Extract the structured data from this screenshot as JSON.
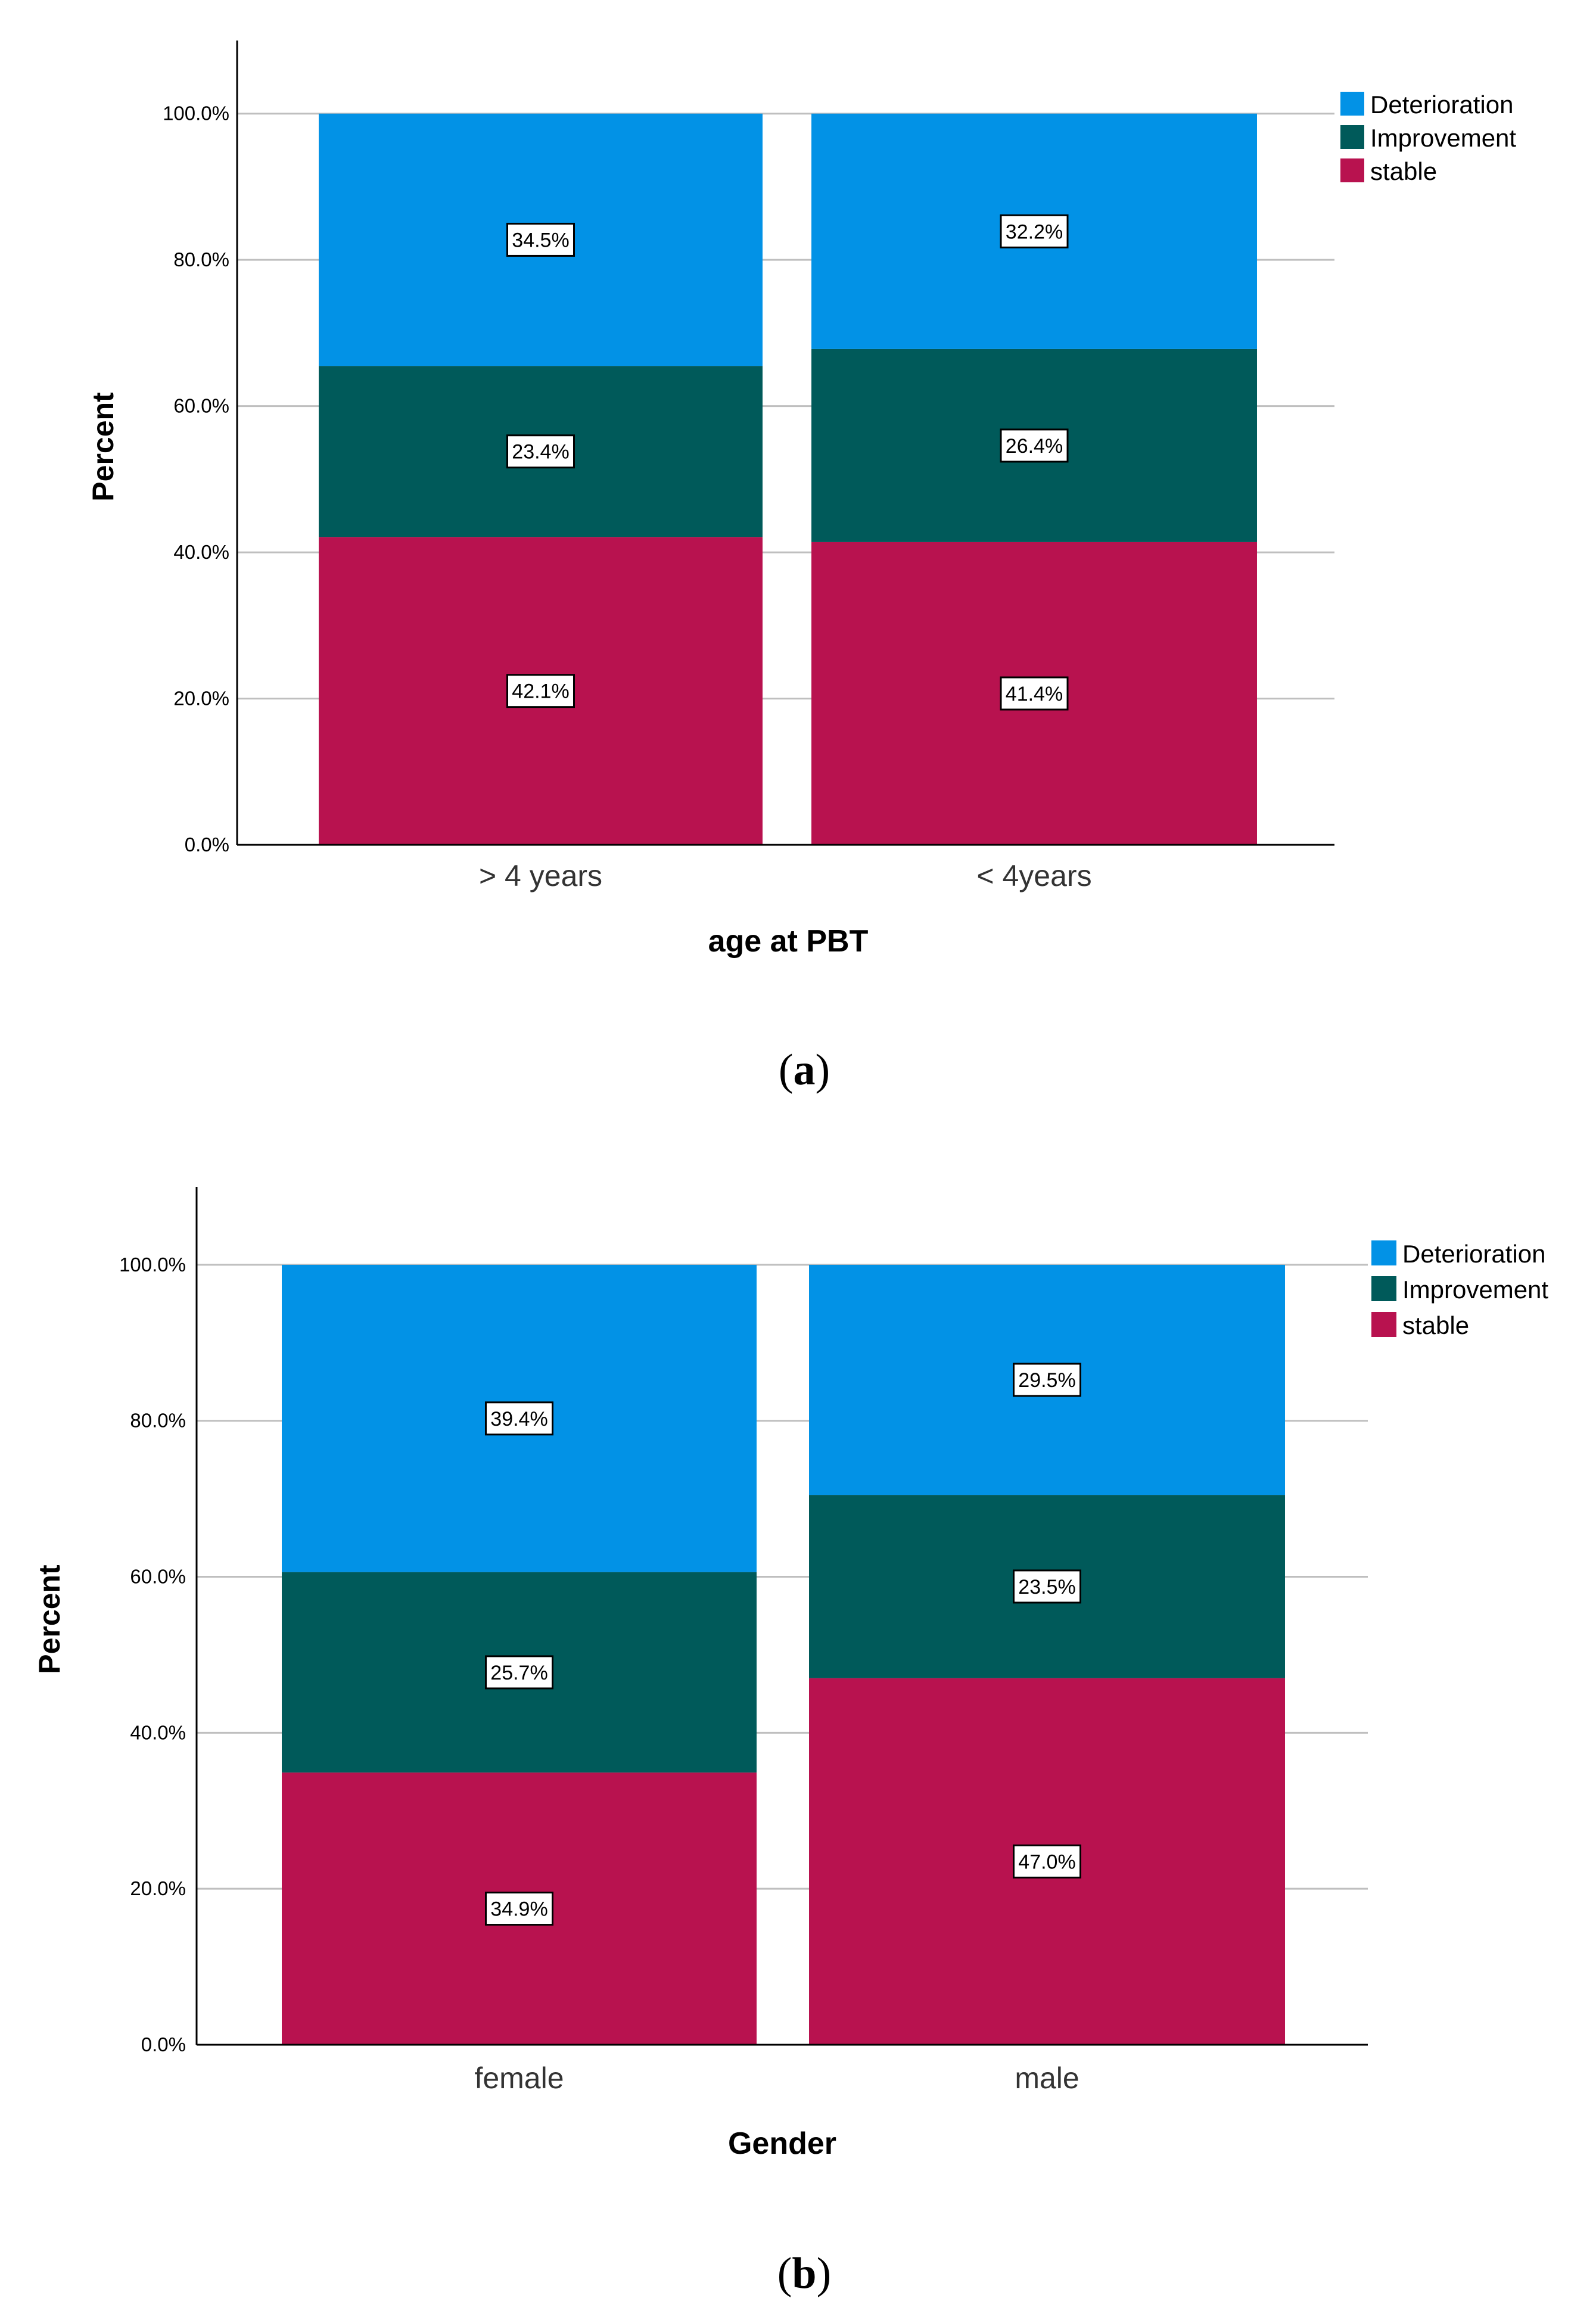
{
  "colors": {
    "deterioration": "#0292E6",
    "improvement": "#005A5A",
    "stable": "#B8124F",
    "axis": "#000000",
    "grid": "#BFBFBF"
  },
  "chart_data": [
    {
      "type": "bar",
      "stacked": true,
      "panel_label": "a",
      "categories": [
        "> 4 years",
        "< 4years"
      ],
      "series": [
        {
          "name": "stable",
          "values": [
            42.1,
            41.4
          ],
          "labels": [
            "42.1%",
            "41.4%"
          ],
          "color": "#B8124F"
        },
        {
          "name": "Improvement",
          "values": [
            23.4,
            26.4
          ],
          "labels": [
            "23.4%",
            "26.4%"
          ],
          "color": "#005A5A"
        },
        {
          "name": "Deterioration",
          "values": [
            34.5,
            32.2
          ],
          "labels": [
            "34.5%",
            "32.2%"
          ],
          "color": "#0292E6"
        }
      ],
      "legend_order": [
        "Deterioration",
        "Improvement",
        "stable"
      ],
      "legend_position": "top-right",
      "xlabel": "age at PBT",
      "ylabel": "Percent",
      "ylim": [
        0,
        110
      ],
      "yticks": [
        0,
        20,
        40,
        60,
        80,
        100
      ],
      "ytick_labels": [
        "0.0%",
        "20.0%",
        "40.0%",
        "60.0%",
        "80.0%",
        "100.0%"
      ],
      "grid": true
    },
    {
      "type": "bar",
      "stacked": true,
      "panel_label": "b",
      "categories": [
        "female",
        "male"
      ],
      "series": [
        {
          "name": "stable",
          "values": [
            34.9,
            47.0
          ],
          "labels": [
            "34.9%",
            "47.0%"
          ],
          "color": "#B8124F"
        },
        {
          "name": "Improvement",
          "values": [
            25.7,
            23.5
          ],
          "labels": [
            "25.7%",
            "23.5%"
          ],
          "color": "#005A5A"
        },
        {
          "name": "Deterioration",
          "values": [
            39.4,
            29.5
          ],
          "labels": [
            "39.4%",
            "29.5%"
          ],
          "color": "#0292E6"
        }
      ],
      "legend_order": [
        "Deterioration",
        "Improvement",
        "stable"
      ],
      "legend_position": "top-right",
      "xlabel": "Gender",
      "ylabel": "Percent",
      "ylim": [
        0,
        110
      ],
      "yticks": [
        0,
        20,
        40,
        60,
        80,
        100
      ],
      "ytick_labels": [
        "0.0%",
        "20.0%",
        "40.0%",
        "60.0%",
        "80.0%",
        "100.0%"
      ],
      "grid": true
    }
  ]
}
